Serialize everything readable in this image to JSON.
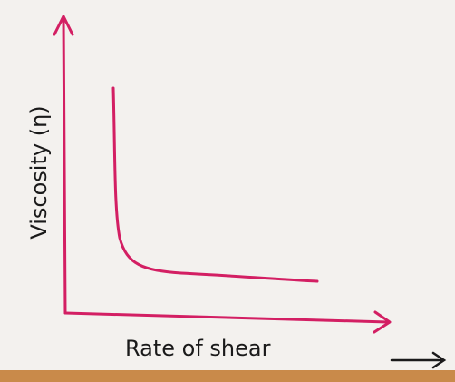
{
  "diagram": {
    "y_axis_label": "Viscosity (η)",
    "x_axis_label": "Rate of shear"
  }
}
